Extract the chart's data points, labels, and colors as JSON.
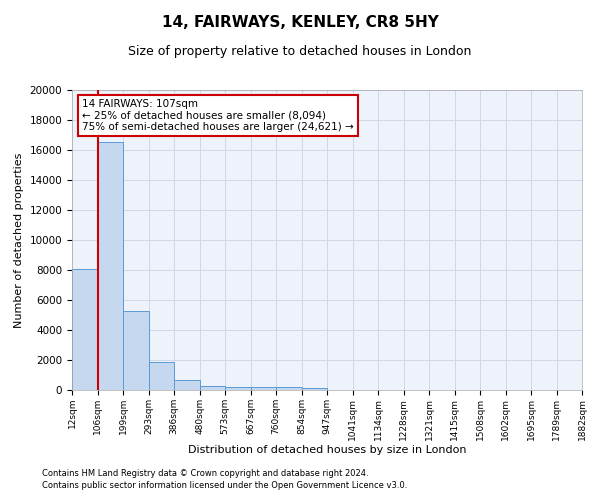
{
  "title_line1": "14, FAIRWAYS, KENLEY, CR8 5HY",
  "title_line2": "Size of property relative to detached houses in London",
  "xlabel": "Distribution of detached houses by size in London",
  "ylabel": "Number of detached properties",
  "annotation_title": "14 FAIRWAYS: 107sqm",
  "annotation_line1": "← 25% of detached houses are smaller (8,094)",
  "annotation_line2": "75% of semi-detached houses are larger (24,621) →",
  "property_size": 107,
  "footer_line1": "Contains HM Land Registry data © Crown copyright and database right 2024.",
  "footer_line2": "Contains public sector information licensed under the Open Government Licence v3.0.",
  "bin_edges": [
    12,
    106,
    199,
    293,
    386,
    480,
    573,
    667,
    760,
    854,
    947,
    1041,
    1134,
    1228,
    1321,
    1415,
    1508,
    1602,
    1695,
    1789,
    1882
  ],
  "bin_counts": [
    8100,
    16500,
    5300,
    1850,
    700,
    300,
    220,
    190,
    170,
    150,
    0,
    0,
    0,
    0,
    0,
    0,
    0,
    0,
    0,
    0
  ],
  "bar_color": "#c5d8f0",
  "bar_edge_color": "#5a9bd5",
  "red_line_color": "#cc0000",
  "grid_color": "#d0d8e8",
  "background_color": "#eef2fb",
  "ylim": [
    0,
    20000
  ],
  "yticks": [
    0,
    2000,
    4000,
    6000,
    8000,
    10000,
    12000,
    14000,
    16000,
    18000,
    20000
  ],
  "annotation_box_color": "white",
  "annotation_box_edge": "#cc0000",
  "title1_fontsize": 11,
  "title2_fontsize": 9,
  "ylabel_fontsize": 8,
  "xlabel_fontsize": 8,
  "ytick_fontsize": 7.5,
  "xtick_fontsize": 6.5,
  "footer_fontsize": 6
}
